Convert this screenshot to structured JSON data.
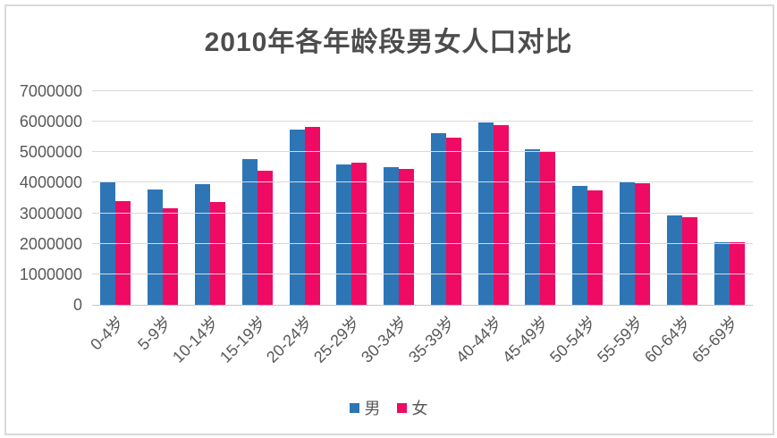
{
  "colors": {
    "background": "#FFFFFF",
    "frame_border": "#D9D9D9",
    "gridline": "#D9D9D9",
    "axis_line": "#C6C6C6",
    "text": "#595959",
    "title_text": "#4D4D4D",
    "male_series": "#2E75B6",
    "female_series": "#EF0A64"
  },
  "chart_data": {
    "type": "bar",
    "title": "2010年各年龄段男女人口对比",
    "xlabel": "",
    "ylabel": "",
    "categories": [
      "0-4岁",
      "5-9岁",
      "10-14岁",
      "15-19岁",
      "20-24岁",
      "25-29岁",
      "30-34岁",
      "35-39岁",
      "40-44岁",
      "45-49岁",
      "50-54岁",
      "55-59岁",
      "60-64岁",
      "65-69岁"
    ],
    "series": [
      {
        "name": "男",
        "color": "#2E75B6",
        "values": [
          4050000,
          3790000,
          3950000,
          4760000,
          5750000,
          4600000,
          4520000,
          5620000,
          5980000,
          5100000,
          3900000,
          4000000,
          2940000,
          2050000
        ]
      },
      {
        "name": "女",
        "color": "#EF0A64",
        "values": [
          3390000,
          3150000,
          3380000,
          4390000,
          5840000,
          4670000,
          4460000,
          5480000,
          5880000,
          5040000,
          3760000,
          3970000,
          2880000,
          2050000
        ]
      }
    ],
    "ylim": [
      0,
      7000000
    ],
    "yticks": [
      0,
      1000000,
      2000000,
      3000000,
      4000000,
      5000000,
      6000000,
      7000000
    ],
    "grid": true,
    "legend_position": "bottom",
    "x_tick_rotation_deg": 45
  }
}
